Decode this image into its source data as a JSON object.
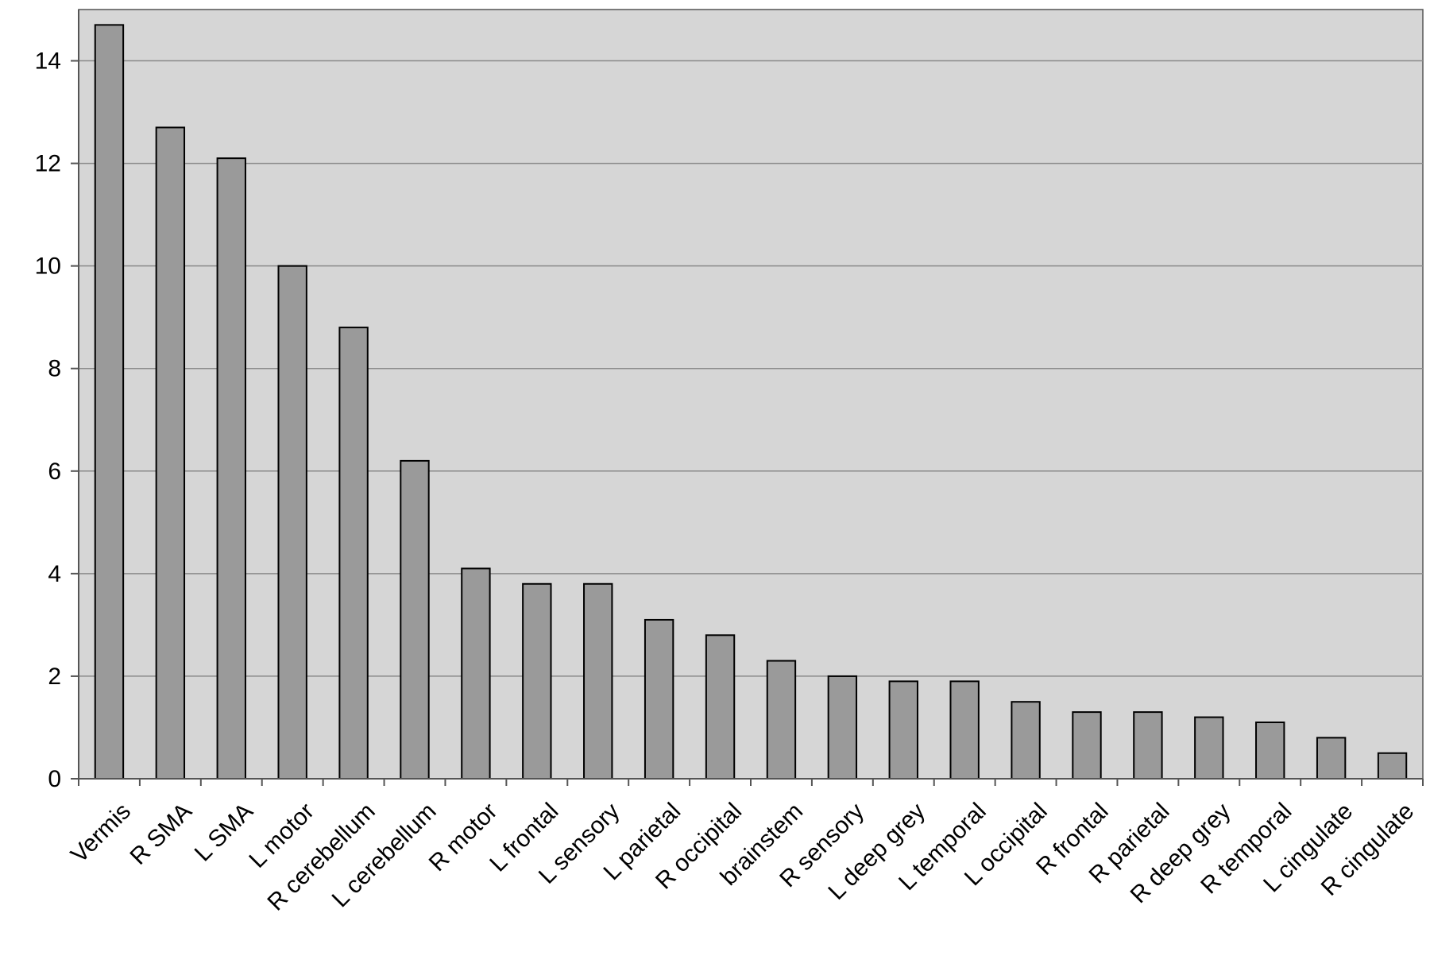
{
  "chart_data": {
    "type": "bar",
    "title": "",
    "xlabel": "",
    "ylabel": "",
    "ylim": [
      0,
      15
    ],
    "yticks": [
      0,
      2,
      4,
      6,
      8,
      10,
      12,
      14
    ],
    "grid": true,
    "legend": "none",
    "colors": {
      "plot_background": "#d6d6d6",
      "bar_fill": "#9a9a9a",
      "bar_stroke": "#000000",
      "gridline": "#8a8a8a"
    },
    "categories": [
      "Vermis",
      "R SMA",
      "L SMA",
      "L motor",
      "R cerebellum",
      "L cerebellum",
      "R motor",
      "L frontal",
      "L sensory",
      "L parietal",
      "R occipital",
      "brainstem",
      "R sensory",
      "L deep grey",
      "L temporal",
      "L occipital",
      "R frontal",
      "R parietal",
      "R deep grey",
      "R temporal",
      "L cingulate",
      "R cingulate"
    ],
    "values": [
      14.7,
      12.7,
      12.1,
      10.0,
      8.8,
      6.2,
      4.1,
      3.8,
      3.8,
      3.1,
      2.8,
      2.3,
      2.0,
      1.9,
      1.9,
      1.5,
      1.3,
      1.3,
      1.2,
      1.1,
      0.8,
      0.5
    ]
  }
}
